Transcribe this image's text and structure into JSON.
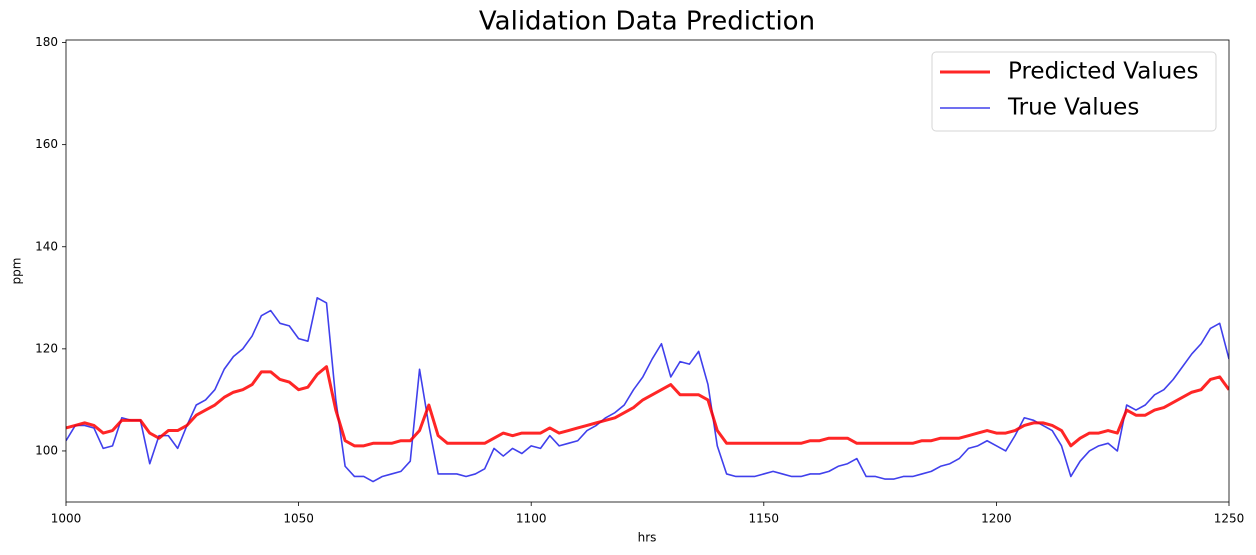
{
  "chart_data": {
    "type": "line",
    "title": "Validation Data Prediction",
    "x_label": "hrs",
    "y_label": "ppm",
    "x": [
      1000,
      1002,
      1004,
      1006,
      1008,
      1010,
      1012,
      1014,
      1016,
      1018,
      1020,
      1022,
      1024,
      1026,
      1028,
      1030,
      1032,
      1034,
      1036,
      1038,
      1040,
      1042,
      1044,
      1046,
      1048,
      1050,
      1052,
      1054,
      1056,
      1058,
      1060,
      1062,
      1064,
      1066,
      1068,
      1070,
      1072,
      1074,
      1076,
      1078,
      1080,
      1082,
      1084,
      1086,
      1088,
      1090,
      1092,
      1094,
      1096,
      1098,
      1100,
      1102,
      1104,
      1106,
      1108,
      1110,
      1112,
      1114,
      1116,
      1118,
      1120,
      1122,
      1124,
      1126,
      1128,
      1130,
      1132,
      1134,
      1136,
      1138,
      1140,
      1142,
      1144,
      1146,
      1148,
      1150,
      1152,
      1154,
      1156,
      1158,
      1160,
      1162,
      1164,
      1166,
      1168,
      1170,
      1172,
      1174,
      1176,
      1178,
      1180,
      1182,
      1184,
      1186,
      1188,
      1190,
      1192,
      1194,
      1196,
      1198,
      1200,
      1202,
      1204,
      1206,
      1208,
      1210,
      1212,
      1214,
      1216,
      1218,
      1220,
      1222,
      1224,
      1226,
      1228,
      1230,
      1232,
      1234,
      1236,
      1238,
      1240,
      1242,
      1244,
      1246,
      1248,
      1250
    ],
    "series": [
      {
        "name": "Predicted Values",
        "color": "rgba(255,0,0,0.85)",
        "width": 3,
        "values": [
          104.5,
          105,
          105.5,
          105,
          103.5,
          104,
          106,
          106,
          106,
          103.5,
          102.5,
          104,
          104,
          105,
          107,
          108,
          109,
          110.5,
          111.5,
          112,
          113,
          115.5,
          115.5,
          114,
          113.5,
          112,
          112.5,
          115,
          116.5,
          108,
          102,
          101,
          101,
          101.5,
          101.5,
          101.5,
          102,
          102,
          104,
          109,
          103,
          101.5,
          101.5,
          101.5,
          101.5,
          101.5,
          102.5,
          103.5,
          103,
          103.5,
          103.5,
          103.5,
          104.5,
          103.5,
          104,
          104.5,
          105,
          105.5,
          106,
          106.5,
          107.5,
          108.5,
          110,
          111,
          112,
          113,
          111,
          111,
          111,
          110,
          104,
          101.5,
          101.5,
          101.5,
          101.5,
          101.5,
          101.5,
          101.5,
          101.5,
          101.5,
          102,
          102,
          102.5,
          102.5,
          102.5,
          101.5,
          101.5,
          101.5,
          101.5,
          101.5,
          101.5,
          101.5,
          102,
          102,
          102.5,
          102.5,
          102.5,
          103,
          103.5,
          104,
          103.5,
          103.5,
          104,
          105,
          105.5,
          105.5,
          105,
          104,
          101,
          102.5,
          103.5,
          103.5,
          104,
          103.5,
          108,
          107,
          107,
          108,
          108.5,
          109.5,
          110.5,
          111.5,
          112,
          114,
          114.5,
          112
        ]
      },
      {
        "name": "True Values",
        "color": "rgba(0,0,230,0.75)",
        "width": 1.6,
        "values": [
          102,
          105,
          105,
          104.5,
          100.5,
          101,
          106.5,
          106,
          106,
          97.5,
          103,
          103,
          100.5,
          105,
          109,
          110,
          112,
          116,
          118.5,
          120,
          122.5,
          126.5,
          127.5,
          125,
          124.5,
          122,
          121.5,
          130,
          129,
          110,
          97,
          95,
          95,
          94,
          95,
          95.5,
          96,
          98,
          116,
          105,
          95.5,
          95.5,
          95.5,
          95,
          95.5,
          96.5,
          100.5,
          99,
          100.5,
          99.5,
          101,
          100.5,
          103,
          101,
          101.5,
          102,
          104,
          105,
          106.5,
          107.5,
          109,
          112,
          114.5,
          118,
          121,
          114.5,
          117.5,
          117,
          119.5,
          113,
          101,
          95.5,
          95,
          95,
          95,
          95.5,
          96,
          95.5,
          95,
          95,
          95.5,
          95.5,
          96,
          97,
          97.5,
          98.5,
          95,
          95,
          94.5,
          94.5,
          95,
          95,
          95.5,
          96,
          97,
          97.5,
          98.5,
          100.5,
          101,
          102,
          101,
          100,
          103,
          106.5,
          106,
          105,
          104,
          101,
          95,
          98,
          100,
          101,
          101.5,
          100,
          109,
          108,
          109,
          111,
          112,
          114,
          116.5,
          119,
          121,
          124,
          125,
          118
        ]
      }
    ],
    "xlim": [
      1000,
      1250
    ],
    "xticks": [
      1000,
      1050,
      1100,
      1150,
      1200,
      1250
    ],
    "ylim": [
      90,
      180.5
    ],
    "yticks": [
      100,
      120,
      140,
      160,
      180
    ],
    "grid": false,
    "legend": "upper right"
  }
}
